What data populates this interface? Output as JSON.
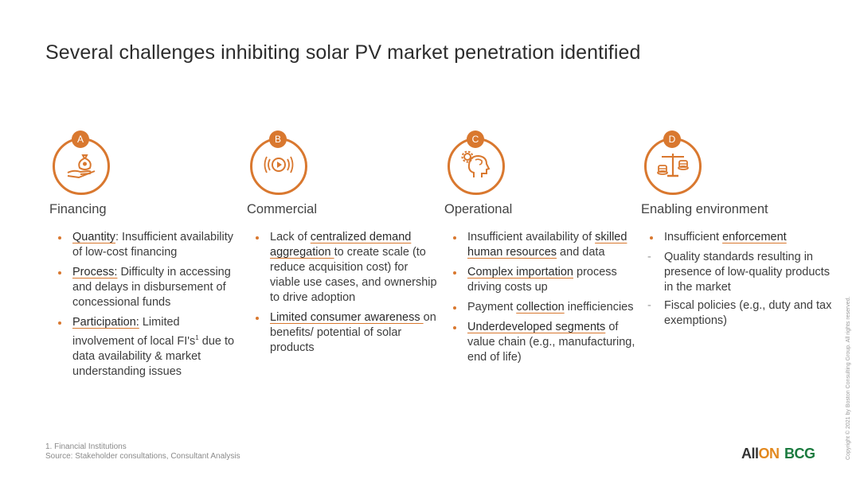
{
  "title": "Several challenges inhibiting solar PV market penetration identified",
  "colors": {
    "accent": "#d9782f",
    "bcg_green": "#1a7a3e",
    "allon_orange": "#e3891f"
  },
  "columns": [
    {
      "badge": "A",
      "icon": "money-bag-hand-icon",
      "title": "Financing",
      "items": [
        {
          "link": "Quantity",
          "text": ": Insufficient availability of low-cost financing"
        },
        {
          "link": "Process:",
          "text": " Difficulty in accessing and delays in disbursement of concessional funds"
        },
        {
          "link": "Participation:",
          "text": " Limited involvement of local FI's",
          "sup": "1",
          "text2": " due to data availability & market understanding issues"
        }
      ]
    },
    {
      "badge": "B",
      "icon": "broadcast-icon",
      "title": "Commercial",
      "items": [
        {
          "pre": "Lack of ",
          "link": "centralized demand aggregation ",
          "text": "to create scale (to reduce acquisition cost) for viable use cases, and ownership to drive adoption"
        },
        {
          "link": "Limited consumer awareness ",
          "text": "on benefits/ potential of solar products"
        }
      ]
    },
    {
      "badge": "C",
      "icon": "head-gear-icon",
      "title": "Operational",
      "items": [
        {
          "pre": "Insufficient availability of ",
          "link": "skilled human resources",
          "text": " and data"
        },
        {
          "link": "Complex importation",
          "text": " process driving costs up"
        },
        {
          "pre": "Payment ",
          "link": "collection",
          "text": " inefficiencies"
        },
        {
          "link": "Underdeveloped segments",
          "text": " of value chain (e.g., manufacturing, end of life)"
        }
      ]
    },
    {
      "badge": "D",
      "icon": "balance-scale-icon",
      "title": "Enabling environment",
      "items": [
        {
          "pre": "Insufficient ",
          "link": "enforcement",
          "text": ""
        }
      ],
      "subitems": [
        "Quality standards resulting in presence of low-quality products in the market",
        "Fiscal policies (e.g., duty and tax exemptions)"
      ]
    }
  ],
  "footnote": {
    "line1": "1. Financial Institutions",
    "line2": "Source: Stakeholder consultations, Consultant Analysis"
  },
  "logos": {
    "allon_a": "All",
    "allon_b": "ON",
    "bcg": "BCG"
  },
  "copyright": "Copyright © 2021 by Boston Consulting Group. All rights reserved."
}
